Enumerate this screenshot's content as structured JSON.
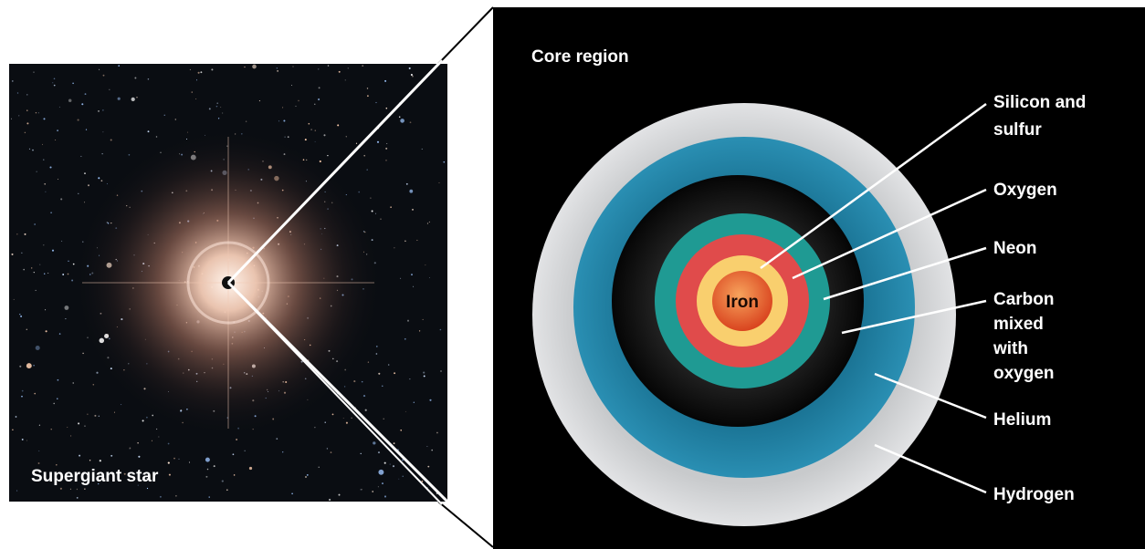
{
  "left_panel": {
    "caption": "Supergiant star"
  },
  "right_panel": {
    "title": "Core region"
  },
  "layers": [
    {
      "key": "hydrogen",
      "label_lines": [
        "Hydrogen"
      ],
      "color": "#d6d7d9"
    },
    {
      "key": "helium",
      "label_lines": [
        "Helium"
      ],
      "color": "#1e7ea0"
    },
    {
      "key": "carbon",
      "label_lines": [
        "Carbon",
        "mixed",
        "with",
        "oxygen"
      ],
      "color": "#0d0d0d"
    },
    {
      "key": "neon",
      "label_lines": [
        "Neon"
      ],
      "color": "#1f9a93"
    },
    {
      "key": "oxygen",
      "label_lines": [
        "Oxygen"
      ],
      "color": "#e04b4b"
    },
    {
      "key": "silicon",
      "label_lines": [
        "Silicon and",
        "sulfur"
      ],
      "color": "#f9cf6e"
    },
    {
      "key": "iron",
      "label_lines": [
        "Iron"
      ],
      "color": "#e0582a"
    }
  ],
  "colors": {
    "background_right": "#000000",
    "space": "#0a0d12",
    "glow": "#f3c9b0"
  }
}
